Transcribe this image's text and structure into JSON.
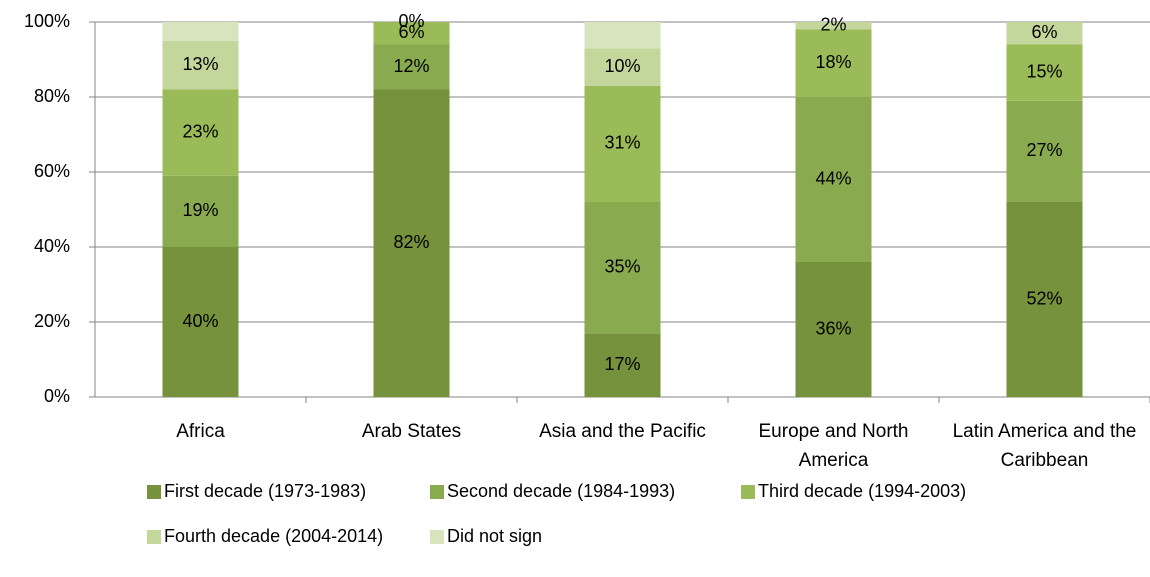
{
  "chart_data": {
    "type": "stacked_bar",
    "categories": [
      "Africa",
      "Arab States",
      "Asia and the Pacific",
      "Europe and North America",
      "Latin America and the Caribbean"
    ],
    "series": [
      {
        "name": "First decade (1973-1983)",
        "color": "#76923c",
        "values": [
          40,
          82,
          17,
          36,
          52
        ],
        "value_labels": [
          "40%",
          "82%",
          "17%",
          "36%",
          "52%"
        ]
      },
      {
        "name": "Second decade (1984-1993)",
        "color": "#8aaa50",
        "values": [
          19,
          12,
          35,
          44,
          27
        ],
        "value_labels": [
          "19%",
          "12%",
          "35%",
          "44%",
          "27%"
        ]
      },
      {
        "name": "Third decade (1994-2003)",
        "color": "#9bbb59",
        "values": [
          23,
          6,
          31,
          18,
          15
        ],
        "value_labels": [
          "23%",
          "6%",
          "31%",
          "18%",
          "15%"
        ]
      },
      {
        "name": "Fourth decade (2004-2014)",
        "color": "#c3d69b",
        "values": [
          13,
          0,
          10,
          2,
          6
        ],
        "value_labels": [
          "13%",
          "0%",
          "10%",
          "2%",
          "6%"
        ]
      },
      {
        "name": "Did not sign",
        "color": "#d7e4bd",
        "values": [
          5,
          0,
          7,
          0,
          0
        ]
      }
    ],
    "ylim": [
      0,
      100
    ],
    "yticks": [
      {
        "value": 0,
        "label": "0%"
      },
      {
        "value": 20,
        "label": "20%"
      },
      {
        "value": 40,
        "label": "40%"
      },
      {
        "value": 60,
        "label": "60%"
      },
      {
        "value": 80,
        "label": "80%"
      },
      {
        "value": 100,
        "label": "100%"
      }
    ],
    "grid": true
  }
}
